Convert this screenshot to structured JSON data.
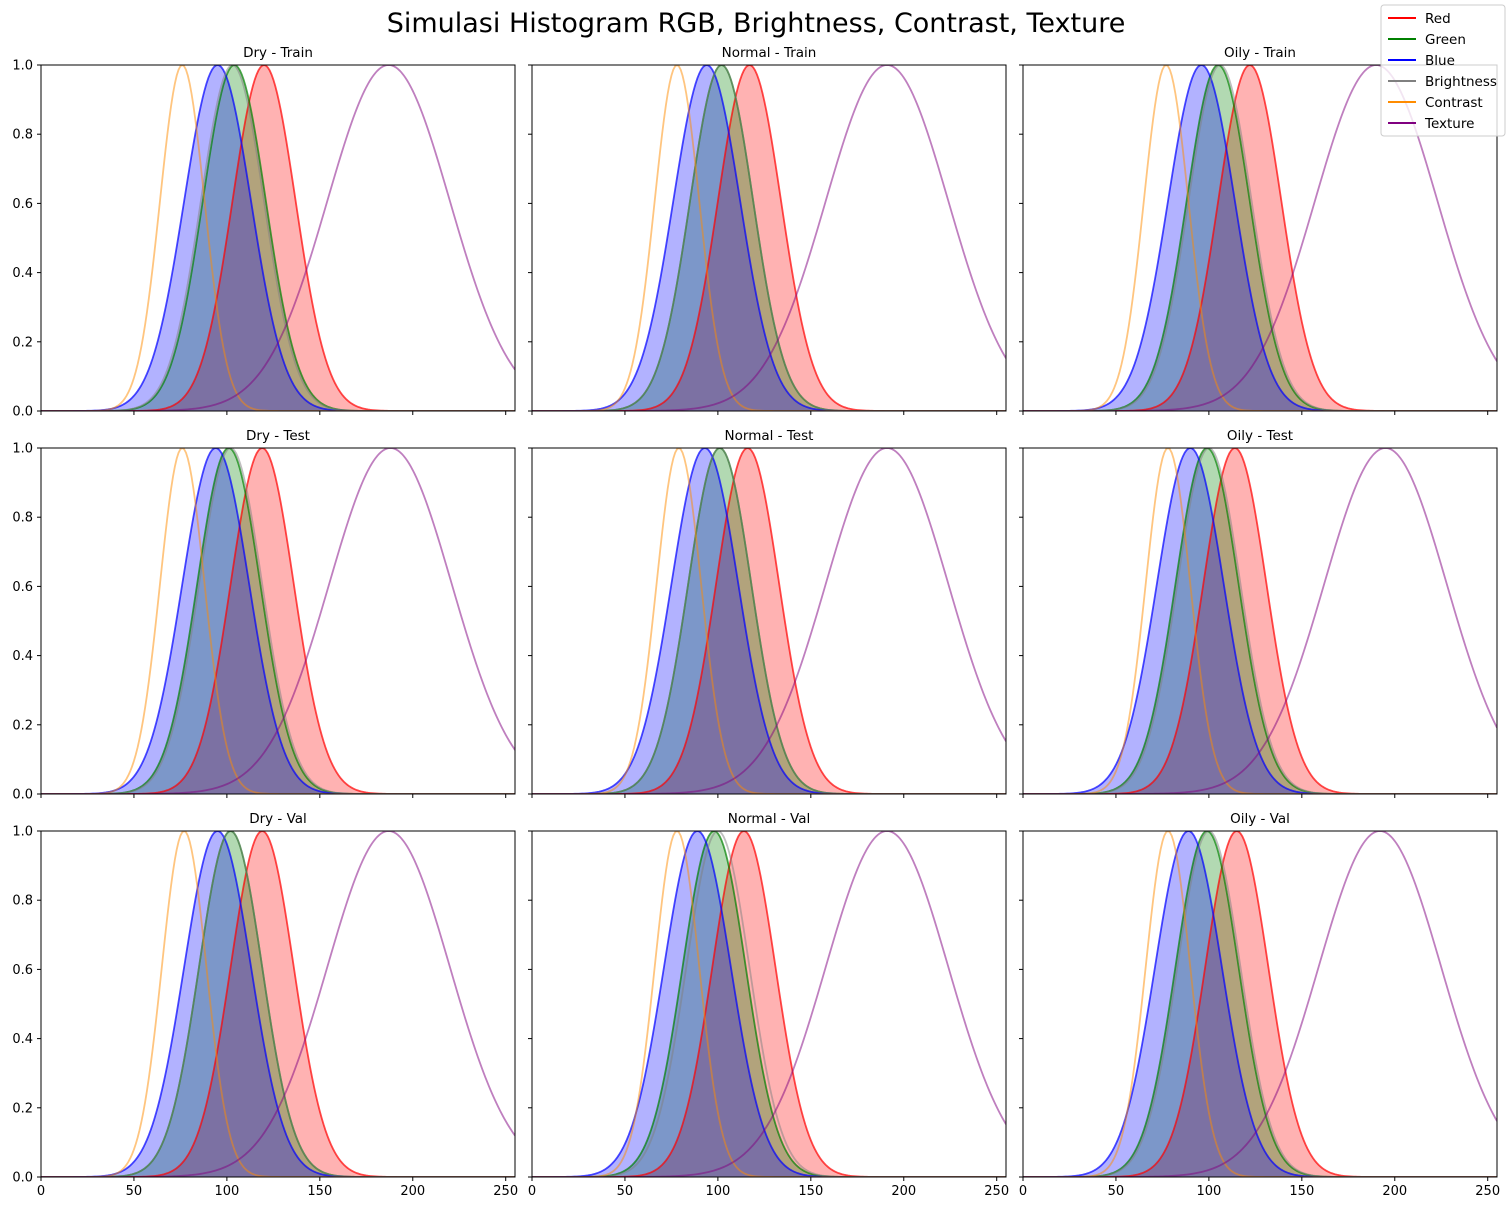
{
  "figure": {
    "title": "Simulasi Histogram RGB, Brightness, Contrast, Texture"
  },
  "legend": {
    "placement": "top-right",
    "items": [
      {
        "label": "Red",
        "color": "#ff0000"
      },
      {
        "label": "Green",
        "color": "#008000"
      },
      {
        "label": "Blue",
        "color": "#0000ff"
      },
      {
        "label": "Brightness",
        "color": "#808080"
      },
      {
        "label": "Contrast",
        "color": "#ff8c00"
      },
      {
        "label": "Texture",
        "color": "#800080"
      }
    ]
  },
  "chart_data": {
    "type": "line",
    "layout": "3x3 grid",
    "shared_x_axis": true,
    "shared_y_axis": true,
    "xlim": [
      0,
      255
    ],
    "ylim": [
      0,
      1
    ],
    "x_ticks": [
      0,
      50,
      100,
      150,
      200,
      250
    ],
    "y_ticks": [
      0.0,
      0.2,
      0.4,
      0.6,
      0.8,
      1.0
    ],
    "y_tick_labels": [
      "0.0",
      "0.2",
      "0.4",
      "0.6",
      "0.8",
      "1.0"
    ],
    "series_colors": {
      "Red": "#ff0000",
      "Green": "#008000",
      "Blue": "#0000ff",
      "Brightness": "#808080",
      "Contrast": "#ff8c00",
      "Texture": "#800080"
    },
    "filled_series": [
      "Red",
      "Green",
      "Blue"
    ],
    "panels": [
      {
        "title": "Dry - Train",
        "curves": {
          "Red": {
            "mean": 120,
            "std": 17
          },
          "Green": {
            "mean": 104,
            "std": 17
          },
          "Blue": {
            "mean": 95,
            "std": 18
          },
          "Brightness": {
            "mean": 103,
            "std": 17
          },
          "Contrast": {
            "mean": 76,
            "std": 12
          },
          "Texture": {
            "mean": 187,
            "std": 33
          }
        }
      },
      {
        "title": "Normal - Train",
        "curves": {
          "Red": {
            "mean": 117,
            "std": 17
          },
          "Green": {
            "mean": 102,
            "std": 17
          },
          "Blue": {
            "mean": 94,
            "std": 18
          },
          "Brightness": {
            "mean": 102,
            "std": 17
          },
          "Contrast": {
            "mean": 78,
            "std": 12
          },
          "Texture": {
            "mean": 191,
            "std": 33
          }
        }
      },
      {
        "title": "Oily - Train",
        "curves": {
          "Red": {
            "mean": 122,
            "std": 17
          },
          "Green": {
            "mean": 105,
            "std": 17
          },
          "Blue": {
            "mean": 96,
            "std": 18
          },
          "Brightness": {
            "mean": 106,
            "std": 17
          },
          "Contrast": {
            "mean": 77,
            "std": 12
          },
          "Texture": {
            "mean": 190,
            "std": 33
          }
        }
      },
      {
        "title": "Dry - Test",
        "curves": {
          "Red": {
            "mean": 119,
            "std": 17
          },
          "Green": {
            "mean": 101,
            "std": 17
          },
          "Blue": {
            "mean": 94,
            "std": 18
          },
          "Brightness": {
            "mean": 102,
            "std": 17
          },
          "Contrast": {
            "mean": 76,
            "std": 12
          },
          "Texture": {
            "mean": 188,
            "std": 33
          }
        }
      },
      {
        "title": "Normal - Test",
        "curves": {
          "Red": {
            "mean": 116,
            "std": 17
          },
          "Green": {
            "mean": 101,
            "std": 17
          },
          "Blue": {
            "mean": 93,
            "std": 18
          },
          "Brightness": {
            "mean": 101,
            "std": 17
          },
          "Contrast": {
            "mean": 79,
            "std": 12
          },
          "Texture": {
            "mean": 191,
            "std": 33
          }
        }
      },
      {
        "title": "Oily - Test",
        "curves": {
          "Red": {
            "mean": 114,
            "std": 17
          },
          "Green": {
            "mean": 99,
            "std": 17
          },
          "Blue": {
            "mean": 90,
            "std": 18
          },
          "Brightness": {
            "mean": 100,
            "std": 17
          },
          "Contrast": {
            "mean": 78,
            "std": 12
          },
          "Texture": {
            "mean": 195,
            "std": 33
          }
        }
      },
      {
        "title": "Dry - Val",
        "curves": {
          "Red": {
            "mean": 119,
            "std": 17
          },
          "Green": {
            "mean": 102,
            "std": 17
          },
          "Blue": {
            "mean": 95,
            "std": 18
          },
          "Brightness": {
            "mean": 102,
            "std": 17
          },
          "Contrast": {
            "mean": 77,
            "std": 12
          },
          "Texture": {
            "mean": 187,
            "std": 33
          }
        }
      },
      {
        "title": "Normal - Val",
        "curves": {
          "Red": {
            "mean": 114,
            "std": 17
          },
          "Green": {
            "mean": 98,
            "std": 17
          },
          "Blue": {
            "mean": 89,
            "std": 18
          },
          "Brightness": {
            "mean": 100,
            "std": 17
          },
          "Contrast": {
            "mean": 78,
            "std": 12
          },
          "Texture": {
            "mean": 191,
            "std": 33
          }
        }
      },
      {
        "title": "Oily - Val",
        "curves": {
          "Red": {
            "mean": 115,
            "std": 17
          },
          "Green": {
            "mean": 99,
            "std": 17
          },
          "Blue": {
            "mean": 89,
            "std": 18
          },
          "Brightness": {
            "mean": 100,
            "std": 17
          },
          "Contrast": {
            "mean": 78,
            "std": 12
          },
          "Texture": {
            "mean": 192,
            "std": 33
          }
        }
      }
    ]
  }
}
